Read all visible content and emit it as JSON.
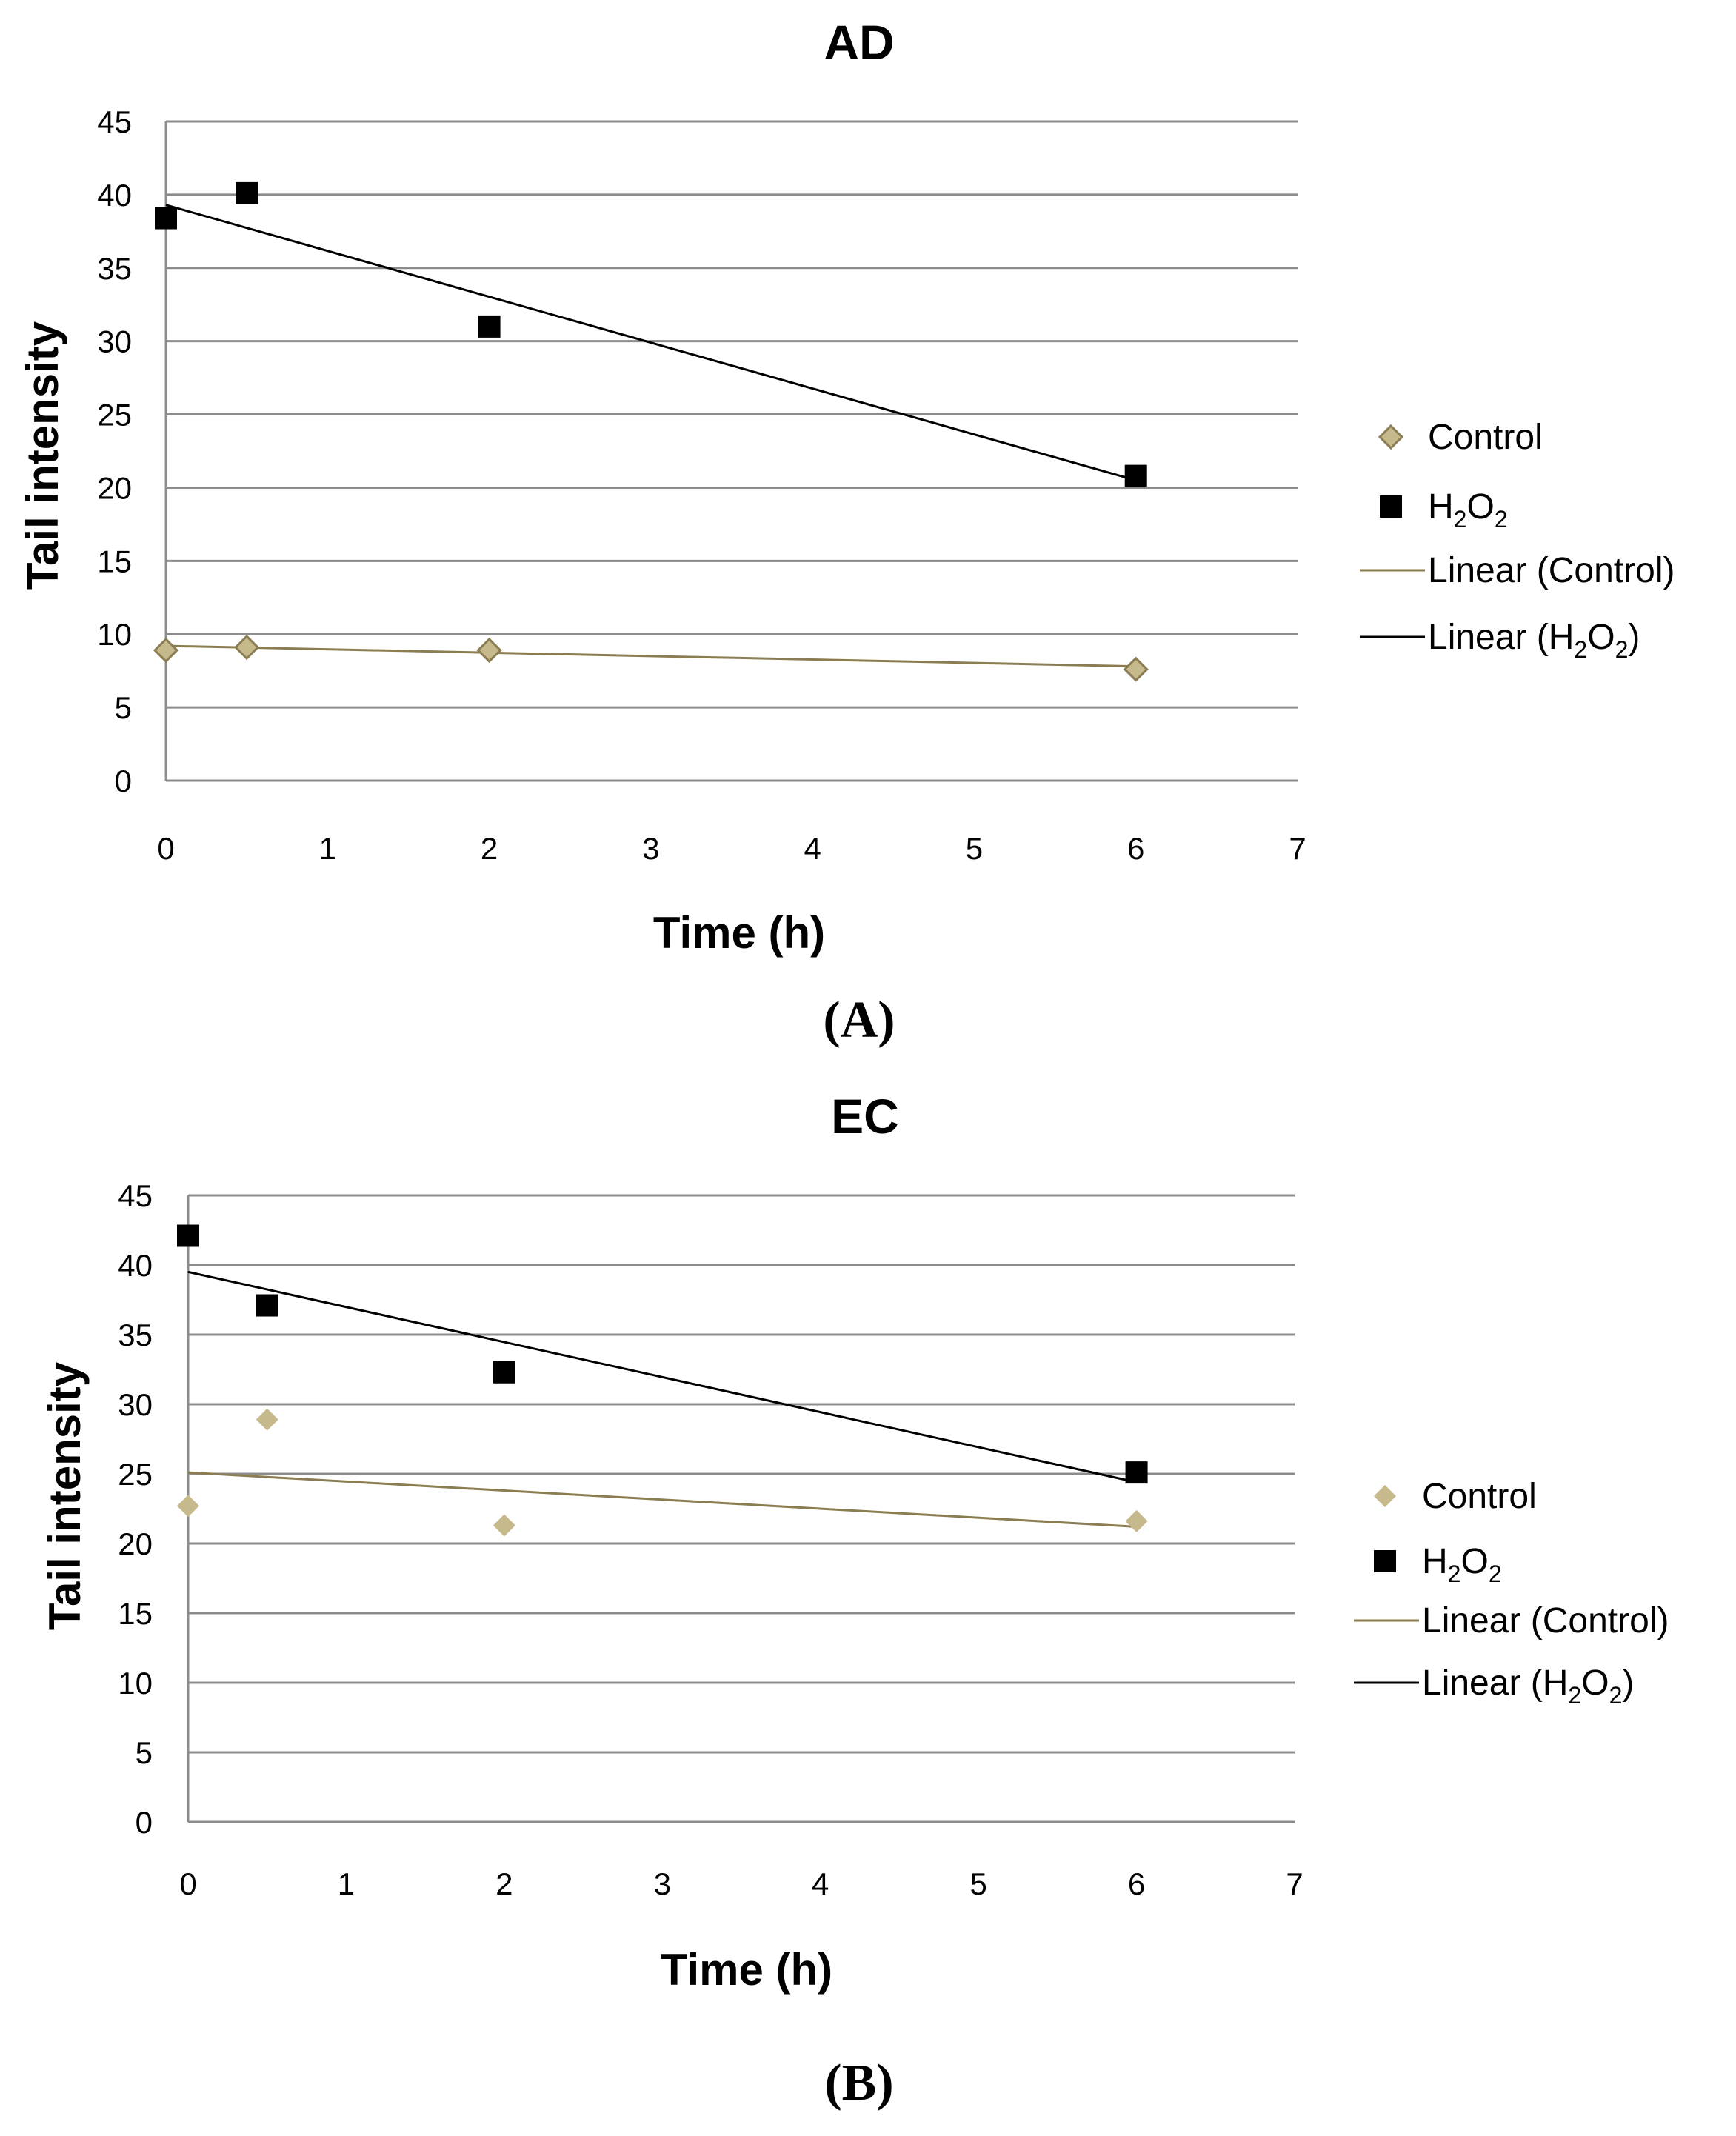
{
  "chart_data": [
    {
      "type": "scatter",
      "title": "AD",
      "panel_label": "(A)",
      "xlabel": "Time (h)",
      "ylabel": "Tail intensity",
      "xlim": [
        0,
        7
      ],
      "ylim": [
        0,
        45
      ],
      "xticks": [
        0,
        1,
        2,
        3,
        4,
        5,
        6,
        7
      ],
      "yticks": [
        0,
        5,
        10,
        15,
        20,
        25,
        30,
        35,
        40,
        45
      ],
      "grid": "horizontal",
      "legend_position": "right",
      "series": [
        {
          "name": "Control",
          "marker": "diamond",
          "color": "#c6b98c",
          "stroke": "#8a7d52",
          "x": [
            0,
            0.5,
            2,
            6
          ],
          "y": [
            8.9,
            9.1,
            8.9,
            7.6
          ]
        },
        {
          "name": "H2O2",
          "marker": "square",
          "color": "#000000",
          "x": [
            0,
            0.5,
            2,
            6
          ],
          "y": [
            38.4,
            40.1,
            31.0,
            20.8
          ]
        }
      ],
      "trendlines": [
        {
          "name": "Linear (Control)",
          "color": "#8a7d52",
          "x": [
            0,
            6
          ],
          "y": [
            9.2,
            7.8
          ]
        },
        {
          "name": "Linear (H2O2)",
          "color": "#000000",
          "x": [
            0,
            6
          ],
          "y": [
            39.3,
            20.5
          ]
        }
      ]
    },
    {
      "type": "scatter",
      "title": "EC",
      "panel_label": "(B)",
      "xlabel": "Time (h)",
      "ylabel": "Tail intensity",
      "xlim": [
        0,
        7
      ],
      "ylim": [
        0,
        45
      ],
      "xticks": [
        0,
        1,
        2,
        3,
        4,
        5,
        6,
        7
      ],
      "yticks": [
        0,
        5,
        10,
        15,
        20,
        25,
        30,
        35,
        40,
        45
      ],
      "grid": "horizontal",
      "legend_position": "right",
      "series": [
        {
          "name": "Control",
          "marker": "diamond",
          "color": "#c6b98c",
          "stroke": "none",
          "x": [
            0,
            0.5,
            2,
            6
          ],
          "y": [
            22.7,
            28.9,
            21.3,
            21.6
          ]
        },
        {
          "name": "H2O2",
          "marker": "square",
          "color": "#000000",
          "x": [
            0,
            0.5,
            2,
            6
          ],
          "y": [
            42.1,
            37.1,
            32.3,
            25.1
          ]
        }
      ],
      "trendlines": [
        {
          "name": "Linear (Control)",
          "color": "#8a7d52",
          "x": [
            0,
            6
          ],
          "y": [
            25.1,
            21.2
          ]
        },
        {
          "name": "Linear (H2O2)",
          "color": "#000000",
          "x": [
            0,
            6
          ],
          "y": [
            39.5,
            24.4
          ]
        }
      ]
    }
  ],
  "legend_labels": {
    "control": "Control",
    "h2o2_main": "H",
    "h2o2_sub1": "2",
    "h2o2_o": "O",
    "h2o2_sub2": "2",
    "linear_control": "Linear (Control)",
    "linear_h2o2_prefix": "Linear (H",
    "linear_h2o2_suffix": ")"
  }
}
